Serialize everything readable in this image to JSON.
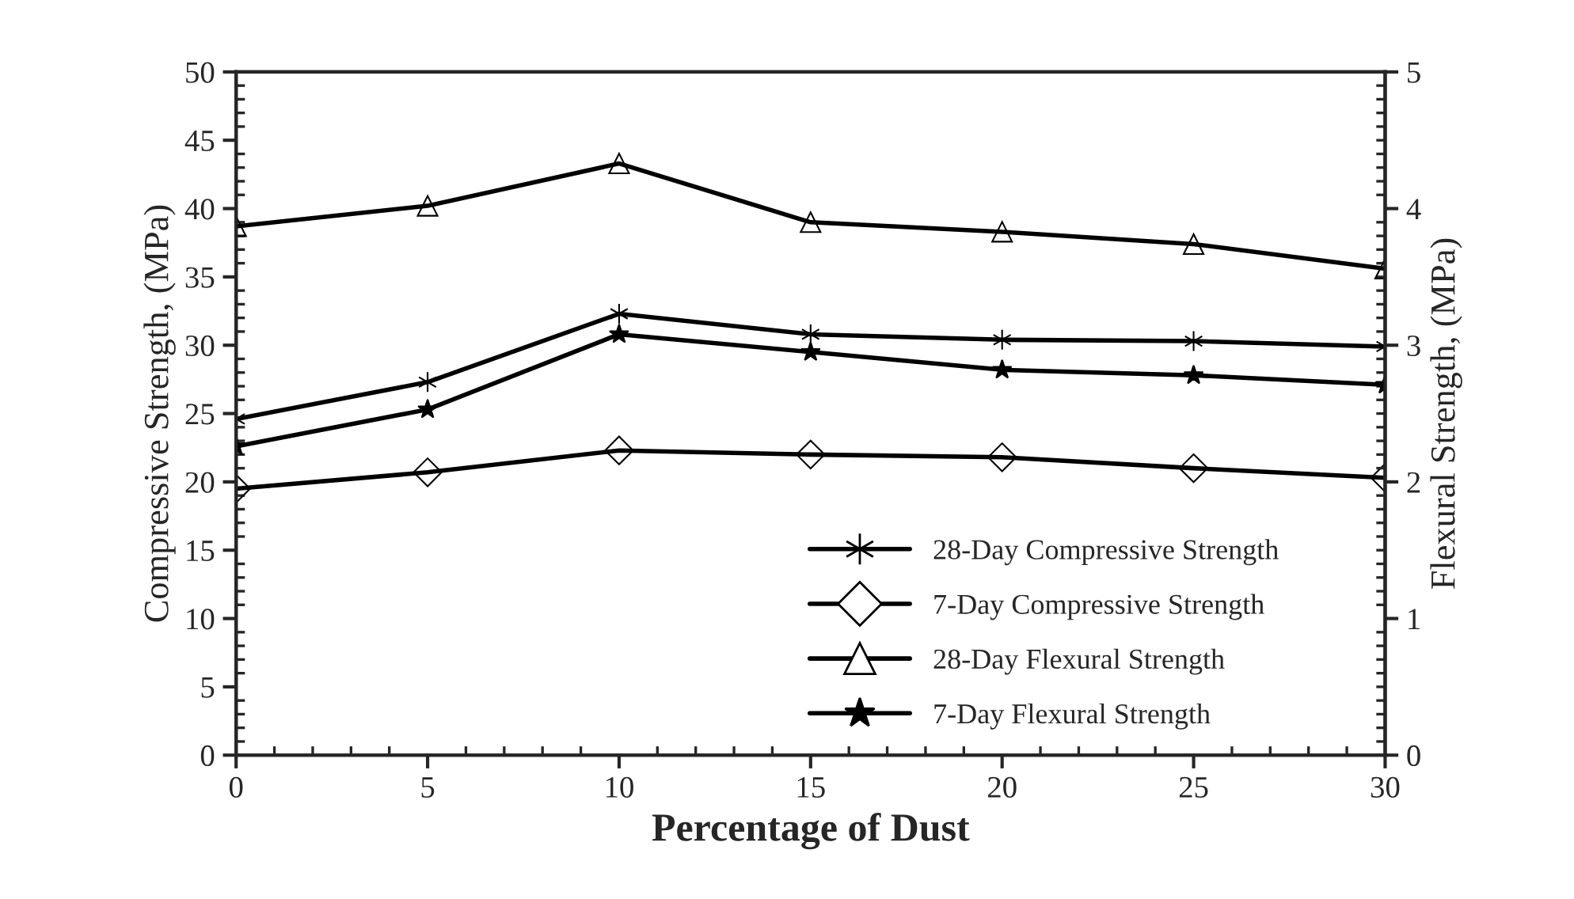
{
  "chart_data": {
    "type": "line",
    "xlabel": "Percentage of Dust",
    "ylabel": "Compressive Strength, (MPa)",
    "y2label": "Flexural Strength, (MPa)",
    "x": [
      0,
      5,
      10,
      15,
      20,
      25,
      30
    ],
    "series": [
      {
        "name": "28-Day Compressive Strength",
        "color": "#000000",
        "marker": "cross",
        "values": [
          24.6,
          27.3,
          32.3,
          30.8,
          30.4,
          30.3,
          29.9
        ]
      },
      {
        "name": "7-Day Compressive Strength",
        "color": "#000000",
        "marker": "diamond",
        "values": [
          19.5,
          20.7,
          22.3,
          22.0,
          21.8,
          21.0,
          20.3
        ]
      },
      {
        "name": "28-Day Flexural Strength",
        "color": "#000000",
        "marker": "triangle",
        "axis": "y2",
        "values": [
          3.87,
          4.02,
          4.33,
          3.9,
          3.83,
          3.74,
          3.56
        ]
      },
      {
        "name": "7-Day Flexural Strength",
        "color": "#000000",
        "marker": "star",
        "axis": "y2",
        "values": [
          2.26,
          2.53,
          3.08,
          2.95,
          2.82,
          2.78,
          2.71
        ]
      }
    ],
    "xlim": [
      0,
      30
    ],
    "xticks": [
      0,
      5,
      10,
      15,
      20,
      25,
      30
    ],
    "ylim": [
      0,
      50
    ],
    "yticks": [
      0,
      5,
      10,
      15,
      20,
      25,
      30,
      35,
      40,
      45,
      50
    ],
    "y2lim": [
      0,
      5
    ],
    "y2ticks": [
      0,
      1,
      2,
      3,
      4,
      5
    ],
    "grid": false,
    "legend": "bottom right",
    "line_style": "solid"
  }
}
